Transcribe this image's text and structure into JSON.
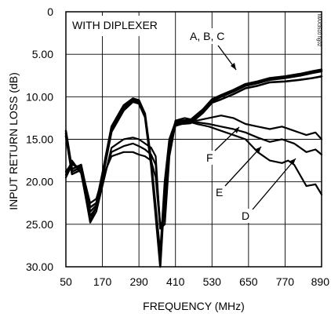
{
  "chart_data": {
    "type": "line",
    "title": "",
    "xlabel": "FREQUENCY (MHz)",
    "ylabel": "INPUT RETURN LOSS (dB)",
    "xlim": [
      50,
      890
    ],
    "ylim": [
      0,
      30
    ],
    "y_inverted": true,
    "grid": true,
    "x_ticks": [
      50,
      170,
      290,
      410,
      530,
      650,
      770,
      890
    ],
    "x_tick_labels": [
      "50",
      "170",
      "290",
      "410",
      "530",
      "650",
      "770",
      "890"
    ],
    "y_ticks": [
      0,
      5,
      10,
      15,
      20,
      25,
      30
    ],
    "y_tick_labels": [
      "0",
      "5.00",
      "10.00",
      "15.00",
      "20.00",
      "25.00",
      "30.00"
    ],
    "annotations": [
      "WITH DIPLEXER",
      "A, B, C",
      "F",
      "E",
      "D"
    ],
    "side_tag": "MAX3510 fig02",
    "series": [
      {
        "name": "A",
        "x": [
          50,
          70,
          100,
          130,
          150,
          170,
          200,
          240,
          270,
          290,
          310,
          330,
          345,
          360,
          375,
          390,
          410,
          430,
          460,
          500,
          530,
          560,
          600,
          640,
          680,
          720,
          770,
          820,
          860,
          890
        ],
        "y": [
          14,
          18.5,
          18,
          23,
          22.5,
          19,
          13.5,
          11,
          10.2,
          10.4,
          12,
          17.5,
          23,
          28.5,
          20,
          15,
          13,
          12.8,
          12.7,
          11.5,
          10.3,
          9.8,
          9.2,
          8.5,
          8.2,
          7.8,
          7.6,
          7.3,
          7.0,
          6.8
        ]
      },
      {
        "name": "B",
        "x": [
          50,
          70,
          100,
          130,
          150,
          170,
          200,
          240,
          270,
          290,
          310,
          330,
          345,
          360,
          375,
          390,
          410,
          430,
          460,
          500,
          530,
          560,
          600,
          640,
          680,
          720,
          770,
          820,
          860,
          890
        ],
        "y": [
          14.3,
          18.8,
          18.3,
          23.5,
          22.8,
          19.3,
          13.8,
          11.3,
          10.4,
          10.6,
          12.2,
          17.8,
          23.5,
          29.5,
          20.5,
          15.3,
          13.2,
          13,
          12.9,
          11.7,
          10.5,
          10.0,
          9.4,
          8.7,
          8.4,
          8.0,
          7.8,
          7.5,
          7.2,
          7.0
        ]
      },
      {
        "name": "C",
        "x": [
          50,
          70,
          100,
          130,
          150,
          170,
          200,
          240,
          270,
          290,
          310,
          330,
          345,
          360,
          375,
          390,
          410,
          430,
          460,
          500,
          530,
          560,
          600,
          640,
          680,
          720,
          770,
          820,
          860,
          890
        ],
        "y": [
          14.6,
          19.1,
          18.6,
          24,
          23.1,
          19.6,
          14.1,
          11.6,
          10.6,
          10.8,
          12.4,
          18.1,
          24,
          30,
          21,
          15.6,
          13.4,
          13.2,
          13.1,
          11.9,
          10.7,
          10.3,
          9.7,
          9.0,
          8.7,
          8.3,
          8.2,
          8.0,
          7.8,
          7.6
        ]
      },
      {
        "name": "D",
        "x": [
          50,
          70,
          100,
          130,
          150,
          170,
          200,
          240,
          270,
          290,
          310,
          330,
          345,
          360,
          375,
          390,
          410,
          440,
          480,
          520,
          560,
          600,
          640,
          680,
          720,
          760,
          780,
          800,
          840,
          870,
          890
        ],
        "y": [
          19.5,
          18,
          18.3,
          22.5,
          22,
          19.5,
          17,
          16.5,
          16.5,
          16.8,
          17,
          17.5,
          19.5,
          25.5,
          25,
          17,
          13.2,
          12.8,
          13.2,
          13.5,
          14,
          14.5,
          15,
          16.5,
          17.5,
          17.8,
          17.5,
          18,
          20.5,
          20.3,
          21.5
        ]
      },
      {
        "name": "E",
        "x": [
          50,
          70,
          100,
          130,
          150,
          170,
          200,
          240,
          270,
          290,
          310,
          330,
          345,
          360,
          375,
          390,
          410,
          440,
          480,
          520,
          560,
          600,
          640,
          680,
          720,
          760,
          800,
          840,
          870,
          890
        ],
        "y": [
          19.2,
          17.5,
          19,
          24.5,
          23,
          20,
          16.5,
          15.8,
          15.5,
          15.8,
          16.2,
          16.8,
          18,
          25,
          24.5,
          16.5,
          13,
          12.8,
          13,
          13.2,
          13.5,
          13.8,
          14.2,
          14.8,
          15.3,
          15,
          15.5,
          16.5,
          16.2,
          16.8
        ]
      },
      {
        "name": "F",
        "x": [
          50,
          70,
          100,
          130,
          150,
          170,
          200,
          240,
          270,
          290,
          310,
          330,
          345,
          360,
          375,
          390,
          410,
          440,
          480,
          520,
          560,
          600,
          640,
          680,
          720,
          760,
          800,
          840,
          870,
          890
        ],
        "y": [
          18.8,
          17.8,
          18.8,
          24.8,
          23.5,
          20.5,
          16,
          15,
          14.8,
          15,
          15.5,
          16,
          17,
          25.5,
          23.5,
          16,
          12.8,
          12.5,
          12.8,
          12.5,
          12.2,
          12.5,
          13.2,
          13.5,
          13.8,
          13.5,
          14,
          14.5,
          14.2,
          15
        ]
      }
    ]
  }
}
